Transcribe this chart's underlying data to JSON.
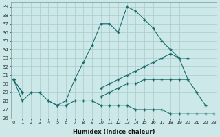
{
  "xlabel": "Humidex (Indice chaleur)",
  "x": [
    0,
    1,
    2,
    3,
    4,
    5,
    6,
    7,
    8,
    9,
    10,
    11,
    12,
    13,
    14,
    15,
    16,
    17,
    18,
    19,
    20,
    21,
    22,
    23
  ],
  "line1": [
    30.5,
    28,
    29,
    29,
    28,
    27.5,
    28,
    30.5,
    32.5,
    34.5,
    37,
    37,
    36,
    39,
    38.5,
    37.5,
    36.5,
    35,
    34,
    33,
    30.5,
    29,
    27.5,
    null
  ],
  "line2": [
    30.5,
    29,
    null,
    null,
    null,
    null,
    null,
    null,
    null,
    null,
    29.5,
    30,
    30.5,
    31,
    31.5,
    32,
    32.5,
    33,
    33.5,
    33,
    33,
    null,
    null,
    null
  ],
  "line3": [
    30.5,
    29,
    null,
    null,
    null,
    null,
    null,
    null,
    null,
    null,
    28.5,
    29,
    29.5,
    30,
    30,
    30.5,
    30.5,
    30.5,
    30.5,
    30.5,
    30.5,
    null,
    null,
    null
  ],
  "line4": [
    30.5,
    null,
    null,
    null,
    28,
    27.5,
    27.5,
    28,
    28,
    28,
    27.5,
    27.5,
    27.5,
    27.5,
    27,
    27,
    27,
    27,
    26.5,
    26.5,
    26.5,
    26.5,
    26.5,
    26.5
  ],
  "bg_color": "#cce8e8",
  "grid_color": "#aacccc",
  "line_color": "#1a6b6b",
  "xlim": [
    0,
    23
  ],
  "ylim": [
    26,
    39.5
  ],
  "yticks": [
    26,
    27,
    28,
    29,
    30,
    31,
    32,
    33,
    34,
    35,
    36,
    37,
    38,
    39
  ],
  "xticks": [
    0,
    1,
    2,
    3,
    4,
    5,
    6,
    7,
    8,
    9,
    10,
    11,
    12,
    13,
    14,
    15,
    16,
    17,
    18,
    19,
    20,
    21,
    22,
    23
  ]
}
